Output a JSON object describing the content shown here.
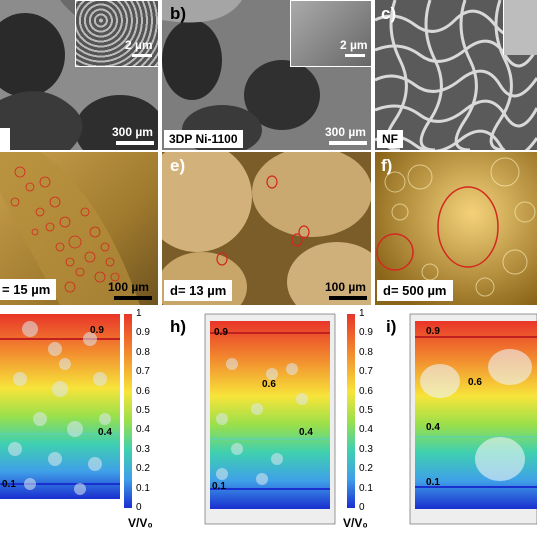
{
  "row_sem": {
    "a": {
      "scale_inset": "2 µm",
      "scale_main": "300 µm"
    },
    "b": {
      "label": "b)",
      "scale_inset": "2 µm",
      "scale_main": "300 µm",
      "tag": "3DP Ni-1100"
    },
    "c": {
      "label": "c)",
      "tag": "NF"
    }
  },
  "row_optical": {
    "d": {
      "tag": "= 15 µm",
      "scale": "100 µm"
    },
    "e": {
      "label": "e)",
      "tag": "d= 13 µm",
      "scale": "100 µm"
    },
    "f": {
      "label": "f)",
      "tag": "d= 500 µm"
    }
  },
  "row_sim": {
    "g": {
      "contours": [
        "0.9",
        "0.4",
        "0.1"
      ]
    },
    "h": {
      "label": "h)",
      "contours": [
        "0.9",
        "0.6",
        "0.4",
        "0.1"
      ]
    },
    "i": {
      "label": "i)",
      "contours": [
        "0.9",
        "0.6",
        "0.4",
        "0.1"
      ]
    },
    "colorbar_ticks": [
      "1",
      "0.9",
      "0.8",
      "0.7",
      "0.6",
      "0.5",
      "0.4",
      "0.3",
      "0.2",
      "0.1",
      "0"
    ],
    "colorbar_title": "V/V₀"
  },
  "colors": {
    "sem_gray": "#7a7a7a",
    "optical_gold": "#b08a3a",
    "circle_red": "#d4271f",
    "sim_red": "#e8352a",
    "sim_blue": "#1a2fd0"
  }
}
